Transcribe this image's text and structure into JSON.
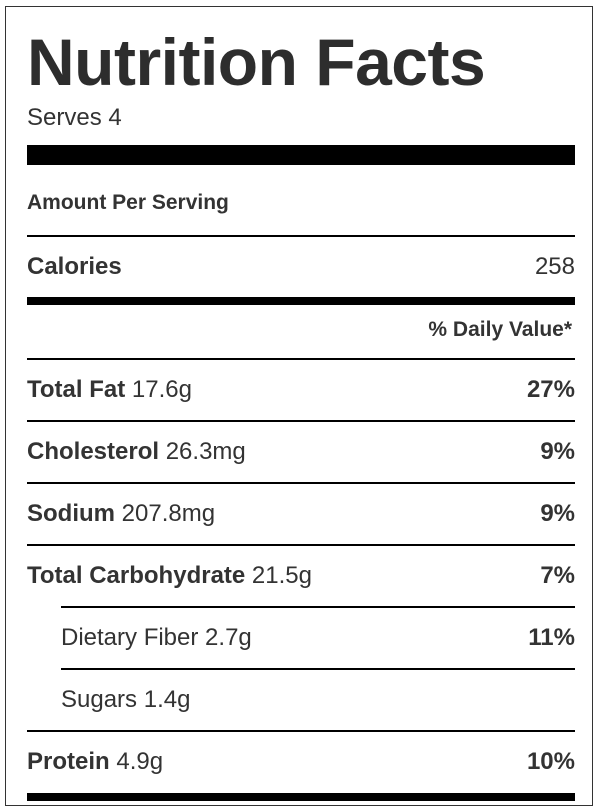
{
  "label": {
    "title": "Nutrition Facts",
    "serves": "Serves 4",
    "amount_per_serving": "Amount Per Serving",
    "calories": {
      "label": "Calories",
      "value": "258"
    },
    "daily_value_header": "% Daily Value*",
    "nutrients": [
      {
        "name": "Total Fat",
        "amount": "17.6g",
        "percent": "27%"
      },
      {
        "name": "Cholesterol",
        "amount": "26.3mg",
        "percent": "9%"
      },
      {
        "name": "Sodium",
        "amount": "207.8mg",
        "percent": "9%"
      },
      {
        "name": "Total Carbohydrate",
        "amount": "21.5g",
        "percent": "7%"
      },
      {
        "name": "Dietary Fiber",
        "amount": "2.7g",
        "percent": "11%"
      },
      {
        "name": "Sugars",
        "amount": "1.4g",
        "percent": ""
      },
      {
        "name": "Protein",
        "amount": "4.9g",
        "percent": "10%"
      }
    ]
  }
}
